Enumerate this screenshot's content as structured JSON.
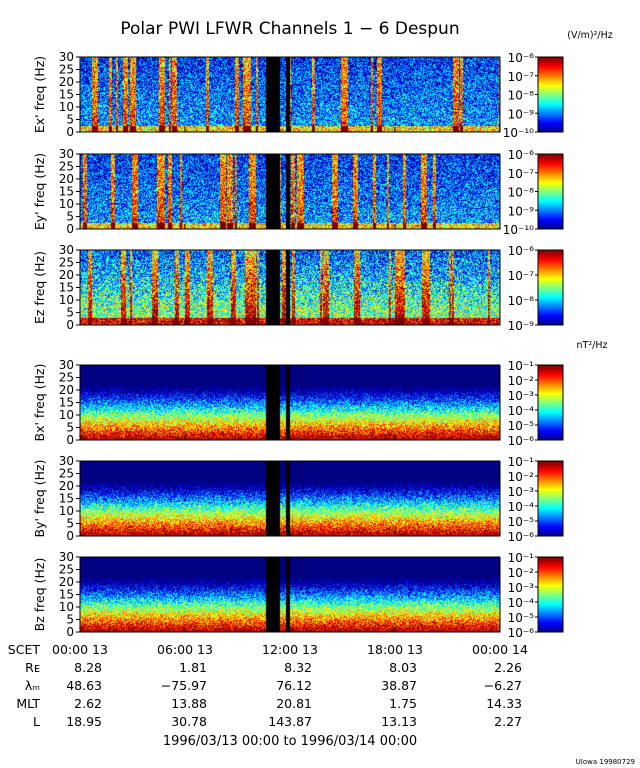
{
  "title": "Polar PWI LFWR Channels 1 − 6 Despun",
  "unit_e": "(V/m)²/Hz",
  "unit_b": "nT²/Hz",
  "footer": "UIowa 19980729",
  "date_range": "1996/03/13 00:00 to 1996/03/14 00:00",
  "chart_data": {
    "type": "heatmap",
    "x_ticks": [
      "00:00 13",
      "06:00 13",
      "12:00 13",
      "18:00 13",
      "00:00 14"
    ],
    "y_ticks": [
      "0",
      "5",
      "10",
      "15",
      "20",
      "25",
      "30"
    ],
    "ylim": [
      0,
      30
    ],
    "panels": [
      {
        "ylabel": "Ex' freq (Hz)",
        "kind": "E",
        "cbar": [
          "10⁻⁶",
          "10⁻⁷",
          "10⁻⁸",
          "10⁻⁹",
          "10⁻¹⁰"
        ]
      },
      {
        "ylabel": "Ey' freq (Hz)",
        "kind": "E",
        "cbar": [
          "10⁻⁶",
          "10⁻⁷",
          "10⁻⁸",
          "10⁻⁹",
          "10⁻¹⁰"
        ]
      },
      {
        "ylabel": "Ez freq (Hz)",
        "kind": "Ez",
        "cbar": [
          "10⁻⁶",
          "10⁻⁷",
          "10⁻⁸",
          "10⁻⁹"
        ]
      },
      {
        "ylabel": "Bx' freq (Hz)",
        "kind": "B",
        "cbar": [
          "10⁻¹",
          "10⁻²",
          "10⁻³",
          "10⁻⁴",
          "10⁻⁵",
          "10⁻⁶"
        ]
      },
      {
        "ylabel": "By' freq (Hz)",
        "kind": "B",
        "cbar": [
          "10⁻¹",
          "10⁻²",
          "10⁻³",
          "10⁻⁴",
          "10⁻⁵",
          "10⁻⁶"
        ]
      },
      {
        "ylabel": "Bz freq (Hz)",
        "kind": "B",
        "cbar": [
          "10⁻¹",
          "10⁻²",
          "10⁻³",
          "10⁻⁴",
          "10⁻⁵",
          "10⁻⁶"
        ]
      }
    ],
    "ephemeris": [
      {
        "label": "SCET",
        "values": [
          "00:00 13",
          "06:00 13",
          "12:00 13",
          "18:00 13",
          "00:00 14"
        ]
      },
      {
        "label": "Rᴇ",
        "values": [
          "8.28",
          "1.81",
          "8.32",
          "8.03",
          "2.26"
        ]
      },
      {
        "label": "λₘ",
        "values": [
          "48.63",
          "−75.97",
          "76.12",
          "38.87",
          "−6.27"
        ]
      },
      {
        "label": "MLT",
        "values": [
          "2.62",
          "13.88",
          "20.81",
          "1.75",
          "14.33"
        ]
      },
      {
        "label": "L",
        "values": [
          "18.95",
          "30.78",
          "143.87",
          "13.13",
          "2.27"
        ]
      }
    ]
  }
}
